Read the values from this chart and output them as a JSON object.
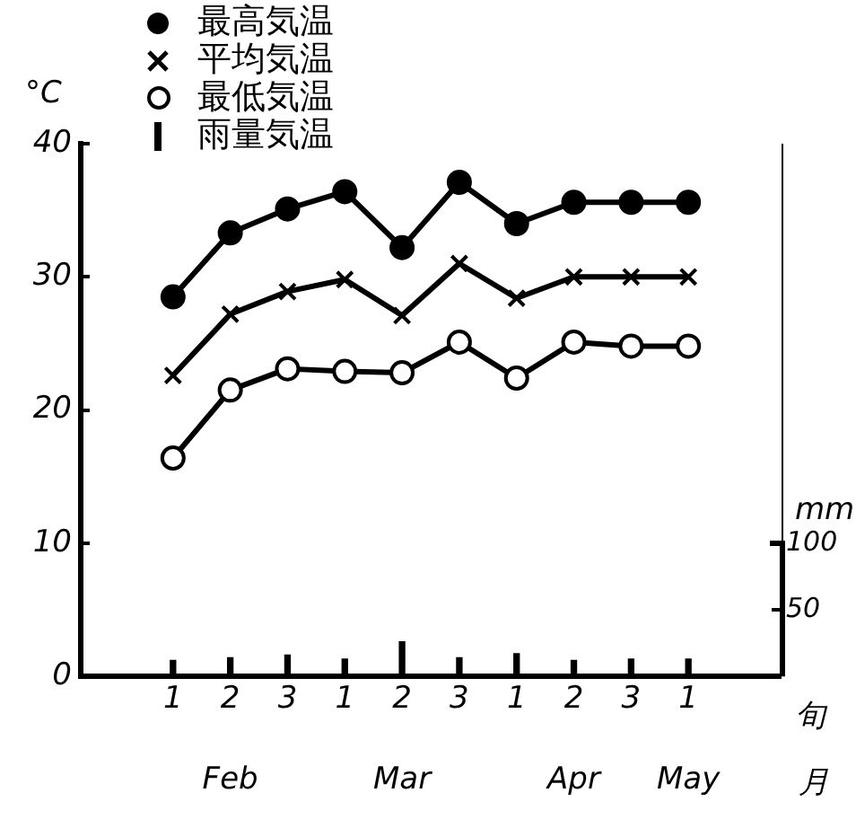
{
  "chart_data": {
    "type": "line",
    "categories": [
      "1",
      "2",
      "3",
      "1",
      "2",
      "3",
      "1",
      "2",
      "3",
      "1"
    ],
    "series": [
      {
        "name": "最高気温",
        "color": "#000000",
        "marker": "circle",
        "values": [
          28.5,
          33.3,
          35.1,
          36.4,
          32.2,
          37.1,
          34.0,
          35.6,
          35.6,
          35.6
        ]
      },
      {
        "name": "平均気温",
        "color": "#000000",
        "marker": "cross",
        "values": [
          22.6,
          27.2,
          28.9,
          29.8,
          27.1,
          31.0,
          28.4,
          30.0,
          30.0,
          30.0
        ]
      },
      {
        "name": "最低気温",
        "color": "#000000",
        "marker": "open-circle",
        "values": [
          16.4,
          21.5,
          23.1,
          22.9,
          22.8,
          25.1,
          22.4,
          25.1,
          24.8,
          24.8
        ]
      },
      {
        "name": "雨量気温",
        "color": "#000000",
        "type": "bar",
        "axis": "y2",
        "values": [
          12,
          14,
          16,
          13,
          26,
          14,
          17,
          12,
          13,
          13
        ]
      }
    ],
    "ylabel": "°C",
    "y2label": "mm",
    "xlabel": "旬",
    "ylim": [
      0,
      40
    ],
    "yticks": [
      0,
      10,
      20,
      30,
      40
    ],
    "y2lim": [
      0,
      400
    ],
    "y2ticks": [
      50,
      100
    ],
    "annotations": [
      "Feb",
      "Mar",
      "Apr",
      "May",
      "月"
    ],
    "grid": false,
    "legend": "top left",
    "line_style": "solid"
  }
}
